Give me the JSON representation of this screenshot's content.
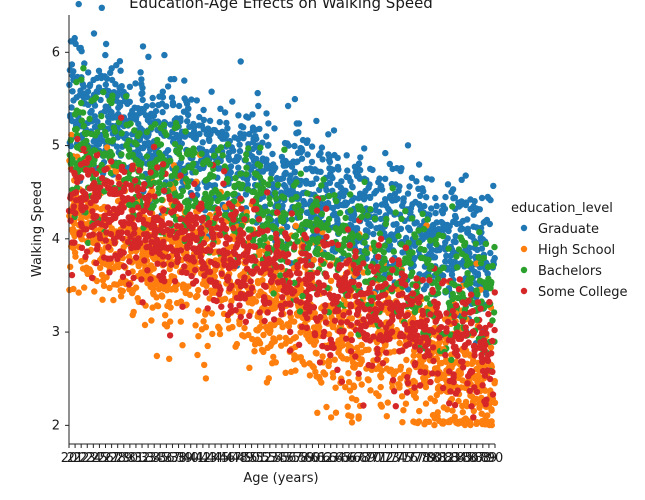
{
  "chart_data": {
    "type": "scatter",
    "title": "Education-Age Effects on Walking Speed",
    "xlabel": "Age (years)",
    "ylabel": "Walking Speed",
    "xlim": [
      20,
      90
    ],
    "ylim": [
      1.8,
      6.4
    ],
    "y_ticks": [
      2,
      3,
      4,
      5,
      6
    ],
    "x_tick_labels_note": "dense categorical ticks, labels overlapping",
    "grid": false,
    "legend": {
      "title": "education_level",
      "placement": "right"
    },
    "series": [
      {
        "name": "Graduate",
        "color": "#1f77b4",
        "trend_start": 5.45,
        "trend_end": 3.75,
        "spread": 0.34
      },
      {
        "name": "High School",
        "color": "#ff7f0e",
        "trend_start": 4.2,
        "trend_end": 2.4,
        "spread": 0.38
      },
      {
        "name": "Bachelors",
        "color": "#2ca02c",
        "trend_start": 5.0,
        "trend_end": 3.3,
        "spread": 0.32
      },
      {
        "name": "Some College",
        "color": "#d62728",
        "trend_start": 4.45,
        "trend_end": 2.75,
        "spread": 0.32
      }
    ]
  }
}
